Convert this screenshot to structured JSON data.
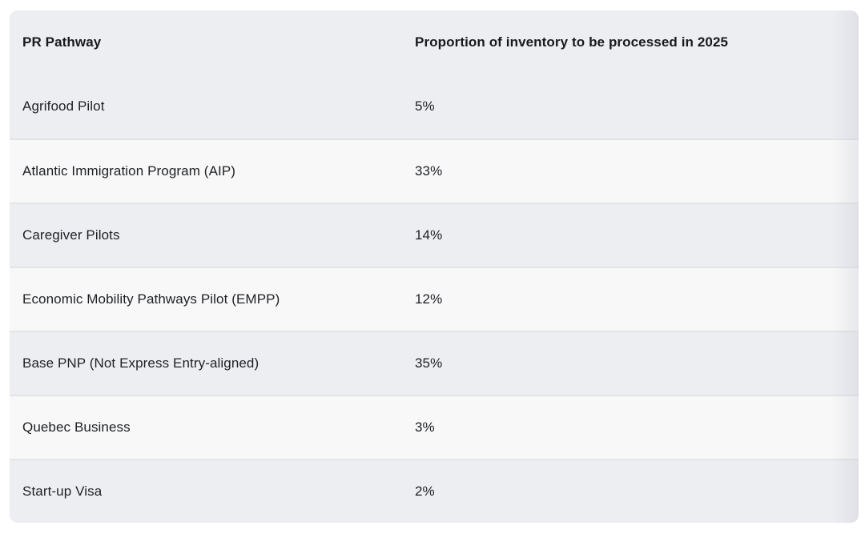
{
  "table": {
    "header": {
      "col1": "PR Pathway",
      "col2": "Proportion of inventory to be processed in 2025"
    },
    "rows": [
      {
        "pathway": "Agrifood Pilot",
        "proportion": "5%"
      },
      {
        "pathway": "Atlantic Immigration Program (AIP)",
        "proportion": "33%"
      },
      {
        "pathway": "Caregiver Pilots",
        "proportion": "14%"
      },
      {
        "pathway": "Economic Mobility Pathways Pilot (EMPP)",
        "proportion": "12%"
      },
      {
        "pathway": "Base PNP (Not Express Entry-aligned)",
        "proportion": "35%"
      },
      {
        "pathway": "Quebec Business",
        "proportion": "3%"
      },
      {
        "pathway": "Start-up Visa",
        "proportion": "2%"
      }
    ],
    "colors": {
      "row_gray": "#edeef2",
      "row_light": "#f8f8f8",
      "separator": "#e3e4e8",
      "text": "#1d2025",
      "page_background": "#ffffff"
    }
  },
  "chart_data": {
    "type": "table",
    "title": "",
    "columns": [
      "PR Pathway",
      "Proportion of inventory to be processed in 2025"
    ],
    "categories": [
      "Agrifood Pilot",
      "Atlantic Immigration Program (AIP)",
      "Caregiver Pilots",
      "Economic Mobility Pathways Pilot (EMPP)",
      "Base PNP (Not Express Entry-aligned)",
      "Quebec Business",
      "Start-up Visa"
    ],
    "values": [
      5,
      33,
      14,
      12,
      35,
      3,
      2
    ],
    "value_unit": "%"
  }
}
